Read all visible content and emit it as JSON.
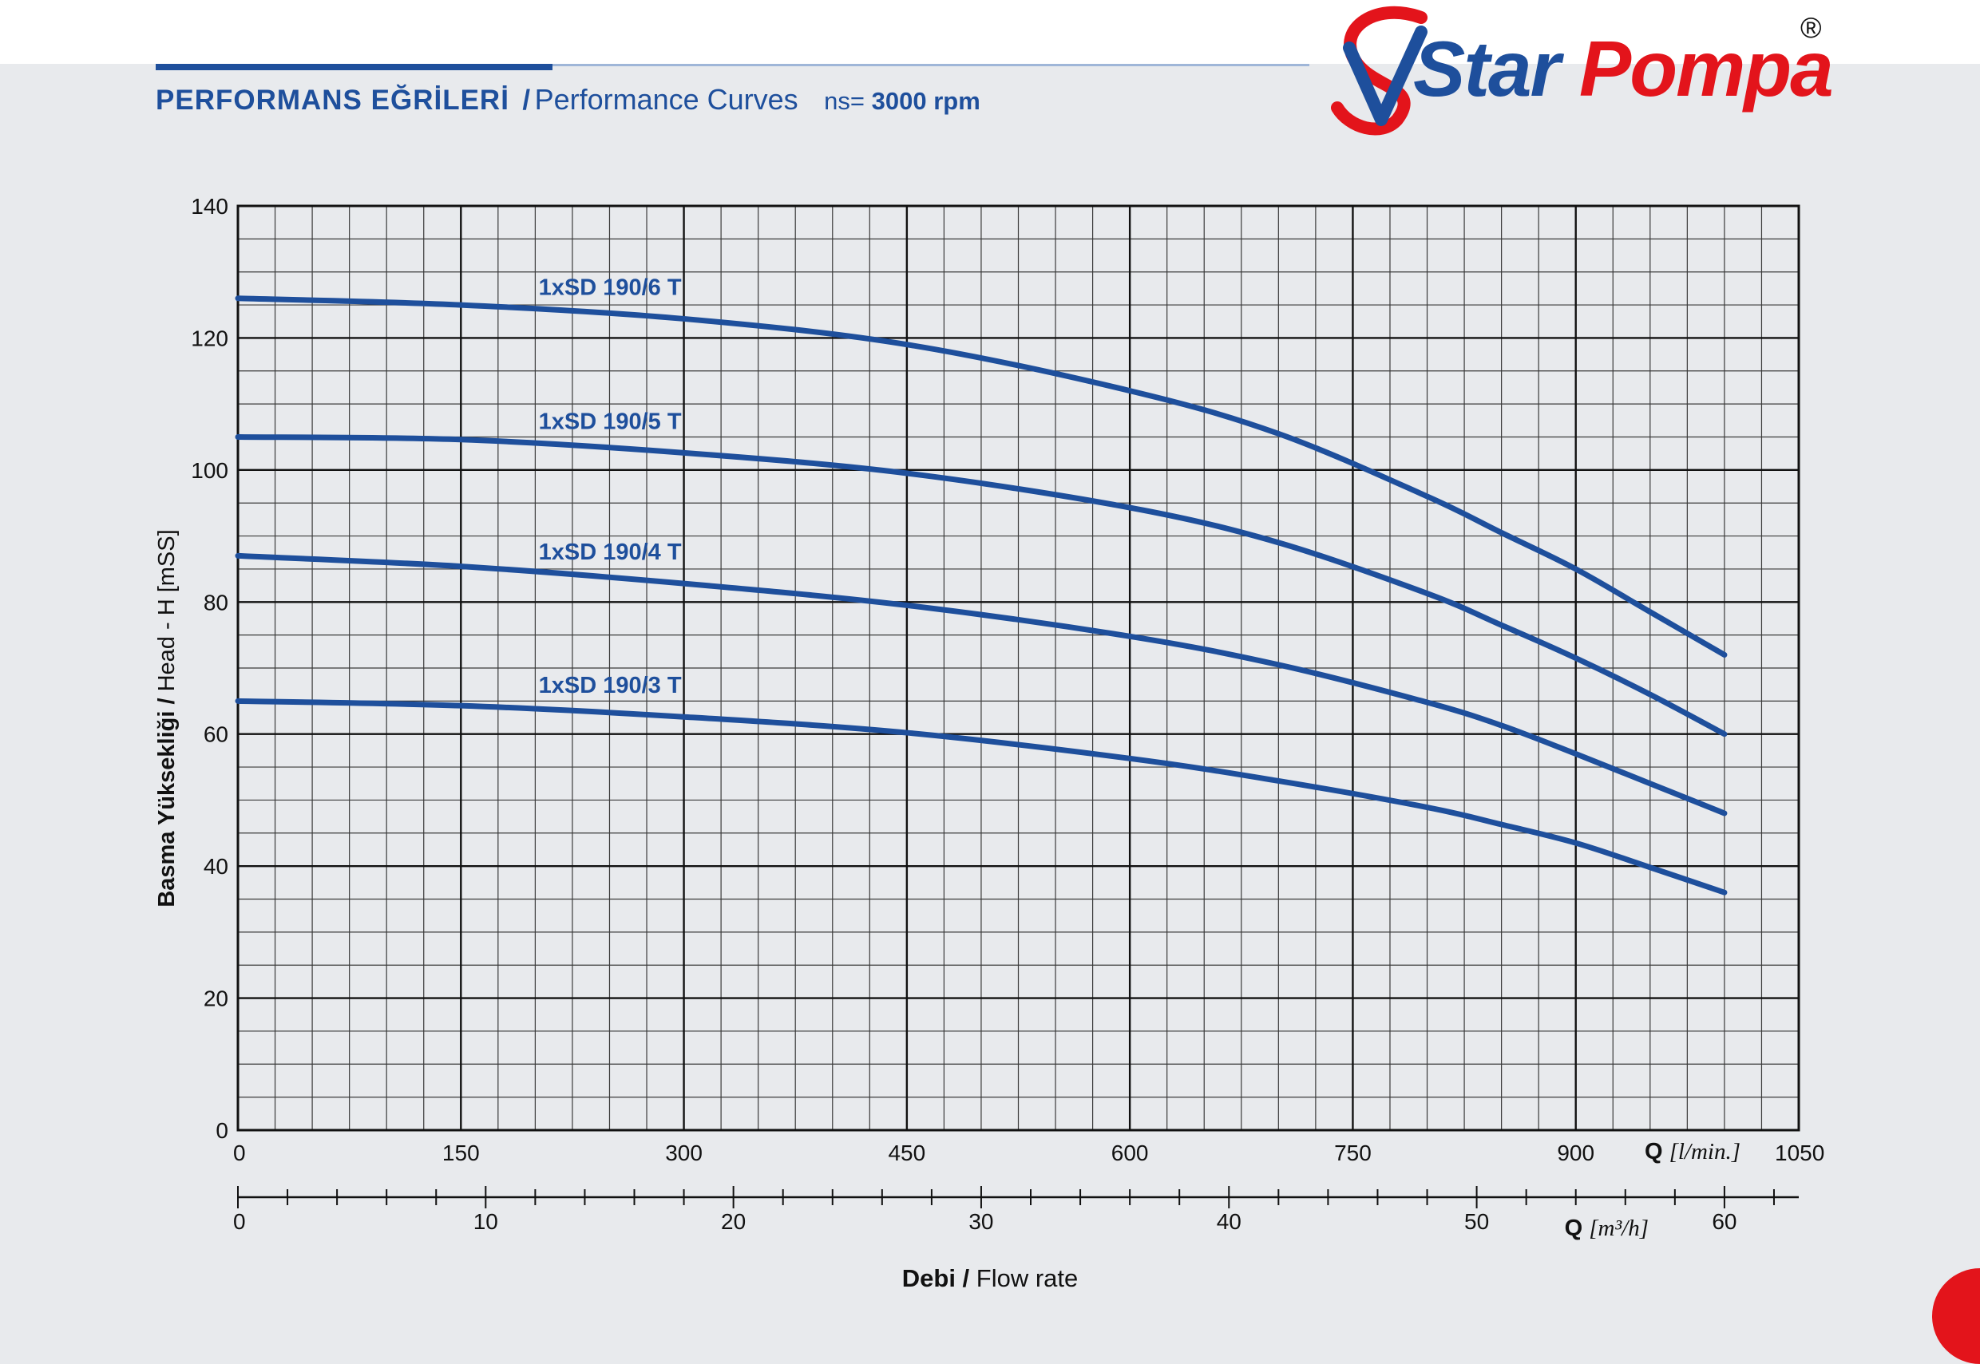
{
  "header": {
    "title_tr": "PERFORMANS EĞRİLERİ",
    "title_sep": "/",
    "title_en": "Performance Curves",
    "speed_prefix": "ns=",
    "speed_value": "3000 rpm"
  },
  "logo": {
    "brand_star": "Star",
    "brand_pompa": "Pompa",
    "registered": "®",
    "colors": {
      "blue": "#1e4f9c",
      "red": "#e3141b"
    }
  },
  "chart_data": {
    "type": "line",
    "ylabel": "Basma Yüksekliği / Head - H [mSS]",
    "xlabel_primary": "Q [l/min.]",
    "xlabel_secondary": "Q [m³/h]",
    "xlabel_bottom_bold": "Debi /",
    "xlabel_bottom": "Flow rate",
    "xlim": [
      0,
      1050
    ],
    "ylim": [
      0,
      140
    ],
    "x_ticks": [
      0,
      150,
      300,
      450,
      600,
      750,
      900,
      1050
    ],
    "y_ticks": [
      0,
      20,
      40,
      60,
      80,
      100,
      120,
      140
    ],
    "x2_lim": [
      0,
      63
    ],
    "x2_ticks": [
      0,
      10,
      20,
      30,
      40,
      50,
      60
    ],
    "grid": true,
    "line_color": "#1e4f9c",
    "series": [
      {
        "name": "1xSD 190/6 T",
        "x": [
          0,
          150,
          300,
          450,
          600,
          700,
          800,
          850,
          900,
          950,
          1000
        ],
        "y": [
          126,
          125,
          122.9,
          119,
          112,
          105.5,
          96,
          90.5,
          85,
          78.5,
          72
        ]
      },
      {
        "name": "1xSD 190/5 T",
        "x": [
          0,
          150,
          300,
          450,
          600,
          700,
          800,
          850,
          900,
          950,
          1000
        ],
        "y": [
          105,
          104.6,
          102.6,
          99.5,
          94.3,
          89,
          81.3,
          76.5,
          71.5,
          66,
          60
        ]
      },
      {
        "name": "1xSD 190/4 T",
        "x": [
          0,
          150,
          300,
          450,
          600,
          700,
          800,
          850,
          900,
          950,
          1000
        ],
        "y": [
          87,
          85.4,
          82.8,
          79.5,
          74.8,
          70.5,
          64.8,
          61.3,
          57,
          52.5,
          48
        ]
      },
      {
        "name": "1xSD 190/3 T",
        "x": [
          0,
          150,
          300,
          450,
          600,
          700,
          800,
          850,
          900,
          950,
          1000
        ],
        "y": [
          65,
          64.3,
          62.6,
          60.2,
          56.3,
          52.9,
          48.9,
          46.3,
          43.5,
          39.8,
          36
        ]
      }
    ],
    "series_label_x": 300
  }
}
